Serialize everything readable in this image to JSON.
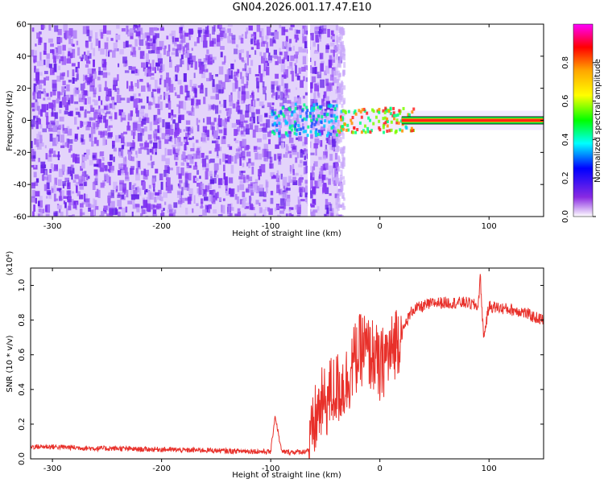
{
  "page": {
    "title": "GN04.2026.001.17.47.E10"
  },
  "chart_data": [
    {
      "type": "heatmap",
      "title": "",
      "xlabel": "Height of straight line (km)",
      "ylabel": "Frequency (Hz)",
      "xlim": [
        -320,
        150
      ],
      "ylim": [
        -60,
        60
      ],
      "x_ticks": [
        -300,
        -200,
        -100,
        0,
        100
      ],
      "y_ticks": [
        -60,
        -40,
        -20,
        0,
        20,
        40,
        60
      ],
      "colorbar": {
        "label": "Normalized spectral amplitude",
        "range": [
          0.0,
          1.0
        ],
        "ticks": [
          0.0,
          0.2,
          0.4,
          0.6,
          0.8
        ],
        "colormap": [
          "#ff00ff",
          "#ff0000",
          "#ffa500",
          "#ffff00",
          "#00ff00",
          "#00ffff",
          "#0000ff",
          "#8a2be2",
          "#ffffff"
        ]
      },
      "features": {
        "noise_region_x": [
          -320,
          -38
        ],
        "gap_x": -65,
        "signal_band_frequency_hz": 0,
        "signal_band_x": [
          -100,
          150
        ],
        "strong_band_x": [
          20,
          150
        ]
      }
    },
    {
      "type": "line",
      "title": "",
      "xlabel": "Height of straight line (km)",
      "ylabel": "SNR (10 * v/v)",
      "y_multiplier": "(x10⁴)",
      "xlim": [
        -320,
        150
      ],
      "ylim": [
        0,
        1.1
      ],
      "x_ticks": [
        -300,
        -200,
        -100,
        0,
        100
      ],
      "y_ticks": [
        0.0,
        0.2,
        0.4,
        0.6,
        0.8,
        1.0
      ],
      "color": "#e8302a",
      "series": [
        {
          "x": [
            -320,
            -300,
            -280,
            -260,
            -240,
            -220,
            -200,
            -180,
            -160,
            -140,
            -120,
            -100,
            -96,
            -90,
            -80,
            -70,
            -64,
            -60,
            -55,
            -50,
            -45,
            -40,
            -35,
            -30,
            -25,
            -20,
            -15,
            -10,
            -5,
            0,
            5,
            10,
            15,
            20,
            25,
            30,
            40,
            50,
            60,
            70,
            80,
            90,
            92,
            95,
            100,
            110,
            120,
            130,
            140,
            150
          ],
          "values": [
            0.07,
            0.07,
            0.065,
            0.06,
            0.06,
            0.055,
            0.055,
            0.05,
            0.05,
            0.045,
            0.045,
            0.04,
            0.25,
            0.04,
            0.04,
            0.04,
            0.06,
            0.2,
            0.3,
            0.32,
            0.38,
            0.4,
            0.42,
            0.45,
            0.55,
            0.6,
            0.65,
            0.6,
            0.6,
            0.5,
            0.6,
            0.6,
            0.7,
            0.72,
            0.8,
            0.86,
            0.88,
            0.9,
            0.9,
            0.9,
            0.9,
            0.88,
            1.05,
            0.7,
            0.88,
            0.87,
            0.86,
            0.85,
            0.82,
            0.8
          ]
        }
      ]
    }
  ]
}
